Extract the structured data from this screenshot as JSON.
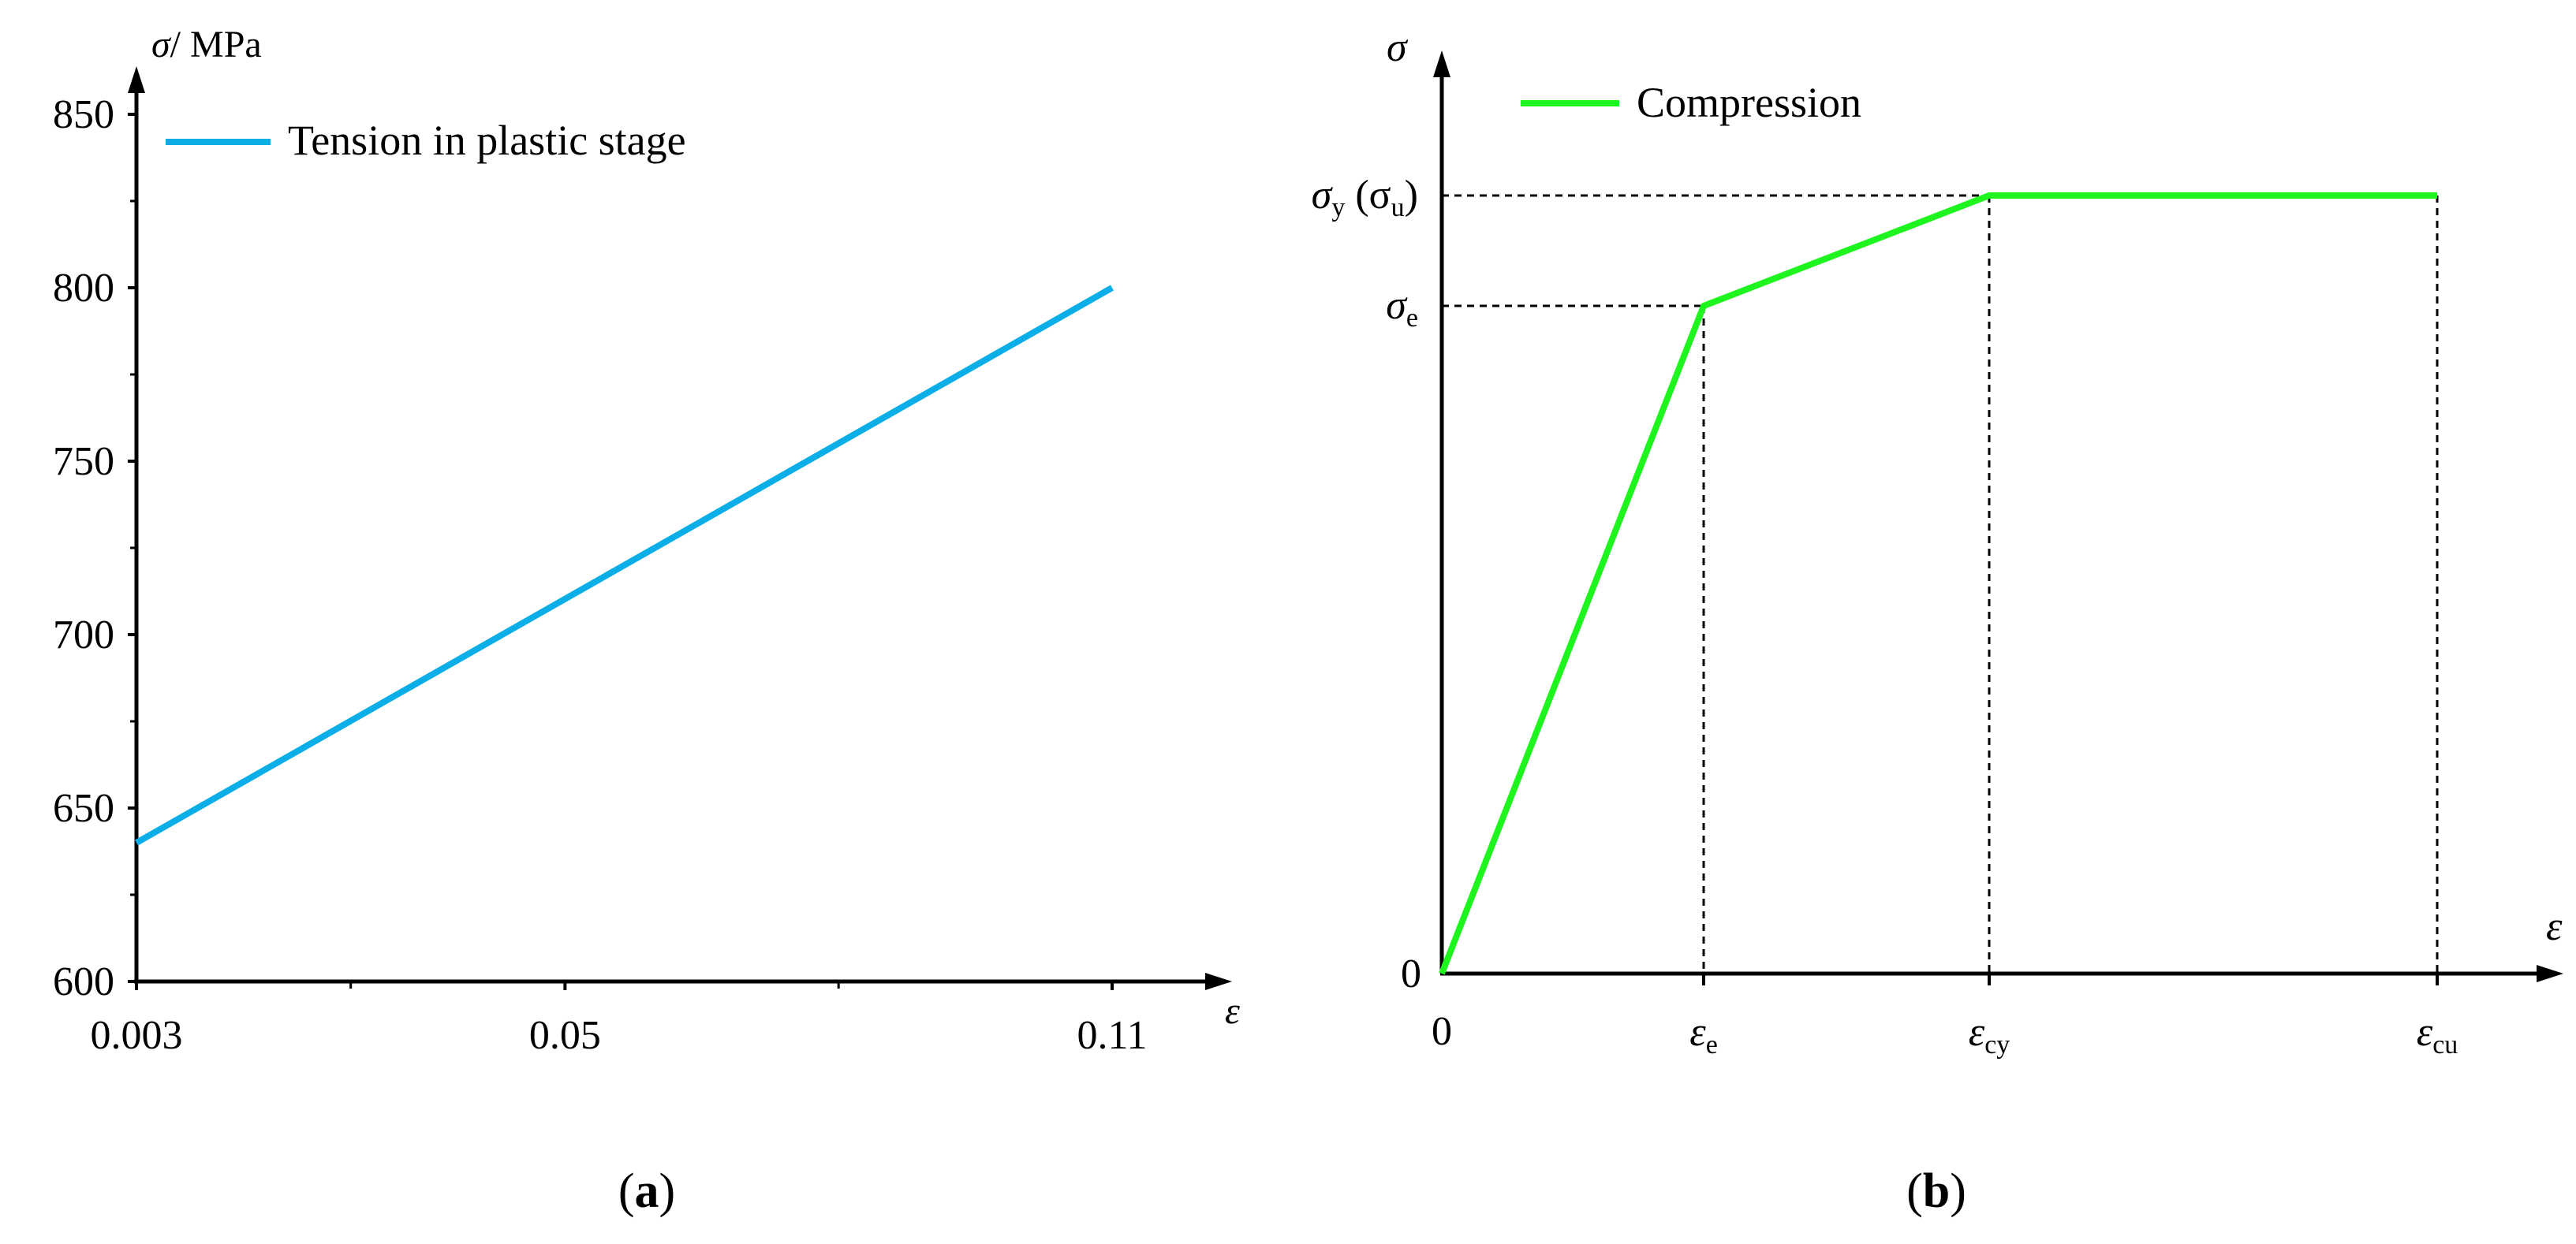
{
  "colors": {
    "tension": "#0BAEE6",
    "compression": "#1EF41E",
    "axis": "#000000"
  },
  "panel_a": {
    "caption_letter": "a",
    "y_label_symbol": "σ",
    "y_label_unit": "/ MPa",
    "x_label": "ε",
    "legend": "Tension in plastic stage"
  },
  "panel_b": {
    "caption_letter": "b",
    "y_label": "σ",
    "x_label": "ε",
    "legend": "Compression",
    "origin_y": "0",
    "origin_x": "0",
    "y_marks": [
      {
        "key": "sy",
        "base": "σ",
        "sub": "y",
        "extra": " (σ",
        "extra_sub": "u",
        "extra_end": ")"
      },
      {
        "key": "se",
        "base": "σ",
        "sub": "e"
      }
    ],
    "x_marks": [
      {
        "key": "ee",
        "base": "ε",
        "sub": "e"
      },
      {
        "key": "ecy",
        "base": "ε",
        "sub": "cy"
      },
      {
        "key": "ecu",
        "base": "ε",
        "sub": "cu"
      }
    ]
  },
  "chart_data": [
    {
      "type": "line",
      "xlabel": "ε",
      "ylabel": "σ/ MPa",
      "x_ticks": [
        "0.003",
        "0.05",
        "0.11"
      ],
      "y_ticks": [
        "600",
        "650",
        "700",
        "750",
        "800",
        "850"
      ],
      "xlim": [
        0.003,
        0.115
      ],
      "ylim": [
        600,
        855
      ],
      "series": [
        {
          "name": "Tension in plastic stage",
          "x": [
            0.003,
            0.11
          ],
          "y": [
            640,
            800
          ]
        }
      ]
    },
    {
      "type": "line",
      "xlabel": "ε",
      "ylabel": "σ",
      "x_ticks": [
        "0",
        "εe",
        "εcy",
        "εcu"
      ],
      "y_ticks": [
        "0",
        "σe",
        "σy (σu)"
      ],
      "series": [
        {
          "name": "Compression",
          "x": [
            "0",
            "εe",
            "εcy",
            "εcu"
          ],
          "y": [
            "0",
            "σe",
            "σy",
            "σy"
          ]
        }
      ]
    }
  ]
}
